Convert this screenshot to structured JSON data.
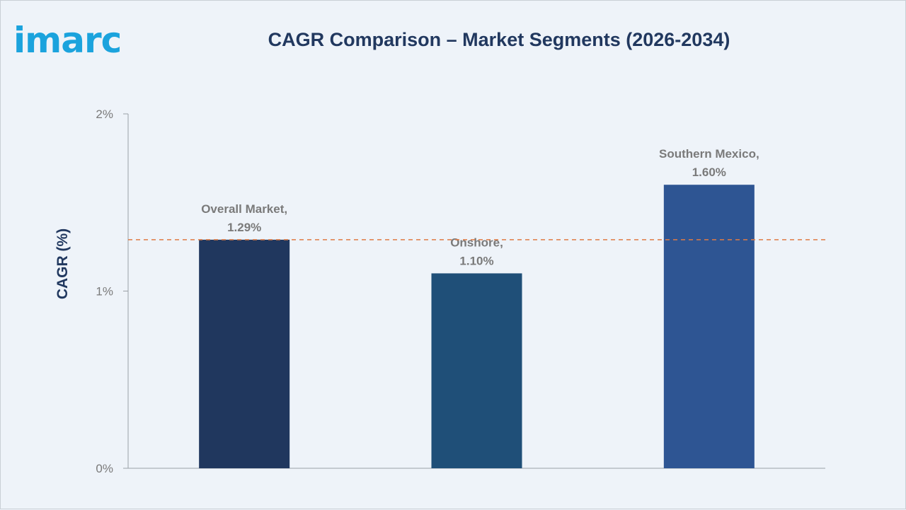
{
  "logo": {
    "text": "imarc",
    "color": "#1ba3dd"
  },
  "chart_data": {
    "type": "bar",
    "title": "CAGR Comparison – Market Segments (2026-2034)",
    "ylabel": "CAGR (%)",
    "xlabel": "",
    "categories": [
      "Overall Market",
      "Onshore",
      "Southern Mexico"
    ],
    "values": [
      1.29,
      1.1,
      1.6
    ],
    "data_labels": [
      [
        "Overall Market,",
        "1.29%"
      ],
      [
        "Onshore,",
        "1.10%"
      ],
      [
        "Southern Mexico,",
        "1.60%"
      ]
    ],
    "bar_colors": [
      "#20375e",
      "#1f4f78",
      "#2e5593"
    ],
    "ylim": [
      0,
      2
    ],
    "yticks": [
      {
        "value": 0,
        "label": "0%"
      },
      {
        "value": 1,
        "label": "1%"
      },
      {
        "value": 2,
        "label": "2%"
      }
    ],
    "reference_line": {
      "value": 1.29,
      "style": "dashed",
      "color": "#e07b44"
    },
    "grid": false,
    "legend": "none"
  }
}
